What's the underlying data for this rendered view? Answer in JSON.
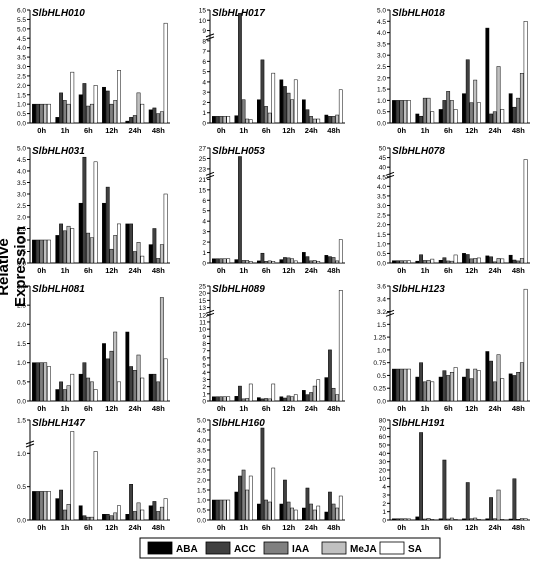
{
  "figure": {
    "ylabel": "Relative Expression",
    "legend": {
      "placement": "bottom-center",
      "entries": [
        {
          "name": "ABA",
          "color": "#000000"
        },
        {
          "name": "ACC",
          "color": "#404040"
        },
        {
          "name": "IAA",
          "color": "#808080"
        },
        {
          "name": "MeJA",
          "color": "#c0c0c0"
        },
        {
          "name": "SA",
          "color": "#ffffff"
        }
      ]
    }
  },
  "chart_data": [
    {
      "type": "bar",
      "title": "SlbHLH010",
      "categories": [
        "0h",
        "1h",
        "6h",
        "12h",
        "24h",
        "48h"
      ],
      "ylim": [
        0,
        6
      ],
      "yticks": [
        "0.0",
        "0.5",
        "1.0",
        "1.5",
        "2.0",
        "2.5",
        "3.0",
        "3.5",
        "4.0",
        "4.5",
        "5.0",
        "5.5",
        "6.0"
      ],
      "series": [
        {
          "name": "ABA",
          "values": [
            1.0,
            0.3,
            1.5,
            1.9,
            0.1,
            0.7
          ]
        },
        {
          "name": "ACC",
          "values": [
            1.0,
            1.6,
            2.1,
            1.7,
            0.3,
            0.8
          ]
        },
        {
          "name": "IAA",
          "values": [
            1.0,
            1.2,
            0.9,
            1.0,
            0.4,
            0.5
          ]
        },
        {
          "name": "MeJA",
          "values": [
            1.0,
            1.0,
            1.0,
            1.2,
            1.6,
            0.6
          ]
        },
        {
          "name": "SA",
          "values": [
            1.0,
            2.7,
            2.0,
            2.8,
            1.0,
            5.3
          ]
        }
      ]
    },
    {
      "type": "bar",
      "title": "SlbHLH017",
      "categories": [
        "0h",
        "1h",
        "6h",
        "12h",
        "24h",
        "48h"
      ],
      "ylim": [
        0,
        17
      ],
      "axis_break": true,
      "yticks": [
        "0",
        "1",
        "2",
        "3",
        "4",
        "5",
        "6",
        "7",
        "8",
        "9",
        "10",
        "15"
      ],
      "series": [
        {
          "name": "ABA",
          "values": [
            1.0,
            1.1,
            3.5,
            6.5,
            3.5,
            1.2
          ]
        },
        {
          "name": "ACC",
          "values": [
            1.0,
            16.5,
            9.5,
            5.5,
            2.0,
            1.0
          ]
        },
        {
          "name": "IAA",
          "values": [
            1.0,
            3.5,
            2.5,
            4.5,
            1.0,
            1.0
          ]
        },
        {
          "name": "MeJA",
          "values": [
            1.0,
            0.6,
            1.5,
            3.5,
            0.6,
            1.2
          ]
        },
        {
          "name": "SA",
          "values": [
            1.0,
            0.5,
            7.5,
            6.5,
            0.6,
            5.0
          ]
        }
      ]
    },
    {
      "type": "bar",
      "title": "SlbHLH018",
      "categories": [
        "0h",
        "1h",
        "6h",
        "12h",
        "24h",
        "48h"
      ],
      "ylim": [
        0,
        5
      ],
      "yticks": [
        "0.0",
        "0.5",
        "1.0",
        "1.5",
        "2.0",
        "2.5",
        "3.0",
        "3.5",
        "4.0",
        "4.5",
        "5.0"
      ],
      "series": [
        {
          "name": "ABA",
          "values": [
            1.0,
            0.4,
            0.6,
            1.3,
            4.2,
            1.3
          ]
        },
        {
          "name": "ACC",
          "values": [
            1.0,
            0.3,
            1.0,
            2.8,
            0.4,
            0.7
          ]
        },
        {
          "name": "IAA",
          "values": [
            1.0,
            1.1,
            1.4,
            0.9,
            0.5,
            1.1
          ]
        },
        {
          "name": "MeJA",
          "values": [
            1.0,
            1.1,
            1.0,
            1.9,
            2.5,
            2.2
          ]
        },
        {
          "name": "SA",
          "values": [
            1.0,
            0.5,
            0.6,
            0.9,
            0.6,
            4.5
          ]
        }
      ]
    },
    {
      "type": "bar",
      "title": "SlbHLH031",
      "categories": [
        "0h",
        "1h",
        "6h",
        "12h",
        "24h",
        "48h"
      ],
      "ylim": [
        0,
        5
      ],
      "yticks": [
        "0.0",
        "0.5",
        "1.0",
        "1.5",
        "2.0",
        "2.5",
        "3.0",
        "3.5",
        "4.0",
        "4.5",
        "5.0"
      ],
      "series": [
        {
          "name": "ABA",
          "values": [
            1.0,
            1.2,
            2.6,
            2.6,
            1.7,
            0.8
          ]
        },
        {
          "name": "ACC",
          "values": [
            1.0,
            1.7,
            4.6,
            3.3,
            1.7,
            1.5
          ]
        },
        {
          "name": "IAA",
          "values": [
            1.0,
            1.4,
            1.3,
            0.6,
            0.5,
            0.2
          ]
        },
        {
          "name": "MeJA",
          "values": [
            1.0,
            1.6,
            1.1,
            1.2,
            0.9,
            0.8
          ]
        },
        {
          "name": "SA",
          "values": [
            1.0,
            1.5,
            4.4,
            1.7,
            0.3,
            3.0
          ]
        }
      ]
    },
    {
      "type": "bar",
      "title": "SlbHLH053",
      "categories": [
        "0h",
        "1h",
        "6h",
        "12h",
        "24h",
        "48h"
      ],
      "ylim": [
        0,
        27
      ],
      "axis_break": true,
      "yticks": [
        "0",
        "1",
        "2",
        "3",
        "4",
        "5",
        "6",
        "15",
        "21",
        "23",
        "25",
        "27"
      ],
      "series": [
        {
          "name": "ABA",
          "values": [
            1.0,
            0.8,
            0.5,
            0.8,
            2.5,
            1.8
          ]
        },
        {
          "name": "ACC",
          "values": [
            1.0,
            25.0,
            2.3,
            1.3,
            1.5,
            1.5
          ]
        },
        {
          "name": "IAA",
          "values": [
            1.0,
            0.6,
            0.4,
            1.2,
            0.5,
            1.3
          ]
        },
        {
          "name": "MeJA",
          "values": [
            1.0,
            0.6,
            0.5,
            1.0,
            0.6,
            0.5
          ]
        },
        {
          "name": "SA",
          "values": [
            1.0,
            0.4,
            0.4,
            0.5,
            0.4,
            5.5
          ]
        }
      ]
    },
    {
      "type": "bar",
      "title": "SlbHLH078",
      "categories": [
        "0h",
        "1h",
        "6h",
        "12h",
        "24h",
        "48h"
      ],
      "ylim": [
        0,
        50
      ],
      "axis_break": true,
      "yticks": [
        "0.0",
        "0.5",
        "1.0",
        "1.5",
        "2.0",
        "2.5",
        "3.0",
        "3.5",
        "4.0",
        "4.5",
        "40",
        "45",
        "50"
      ],
      "series": [
        {
          "name": "ABA",
          "values": [
            1.0,
            0.8,
            1.2,
            4.2,
            3.1,
            3.4
          ]
        },
        {
          "name": "ACC",
          "values": [
            1.0,
            3.6,
            2.3,
            3.7,
            2.7,
            1.3
          ]
        },
        {
          "name": "IAA",
          "values": [
            1.0,
            1.1,
            0.9,
            1.8,
            0.5,
            0.9
          ]
        },
        {
          "name": "MeJA",
          "values": [
            1.0,
            1.1,
            0.8,
            2.0,
            2.0,
            2.0
          ]
        },
        {
          "name": "SA",
          "values": [
            1.0,
            1.7,
            3.5,
            2.2,
            1.8,
            45
          ]
        }
      ]
    },
    {
      "type": "bar",
      "title": "SlbHLH081",
      "categories": [
        "0h",
        "1h",
        "6h",
        "12h",
        "24h",
        "48h"
      ],
      "ylim": [
        0,
        3
      ],
      "yticks": [
        "0.0",
        "0.5",
        "1.0",
        "1.5",
        "2.0",
        "2.5",
        "3.0"
      ],
      "series": [
        {
          "name": "ABA",
          "values": [
            1.0,
            0.3,
            0.7,
            1.5,
            1.8,
            0.7
          ]
        },
        {
          "name": "ACC",
          "values": [
            1.0,
            0.5,
            1.0,
            1.1,
            0.9,
            0.7
          ]
        },
        {
          "name": "IAA",
          "values": [
            1.0,
            0.3,
            0.6,
            1.3,
            0.8,
            0.5
          ]
        },
        {
          "name": "MeJA",
          "values": [
            1.0,
            0.4,
            0.5,
            1.8,
            1.2,
            2.7
          ]
        },
        {
          "name": "SA",
          "values": [
            0.9,
            0.7,
            0.3,
            0.5,
            0.6,
            1.1
          ]
        }
      ]
    },
    {
      "type": "bar",
      "title": "SlbHLH089",
      "categories": [
        "0h",
        "1h",
        "6h",
        "12h",
        "24h",
        "48h"
      ],
      "ylim": [
        0,
        27
      ],
      "axis_break": true,
      "yticks": [
        "0",
        "1",
        "2",
        "3",
        "4",
        "5",
        "6",
        "7",
        "8",
        "9",
        "10",
        "11",
        "12",
        "13",
        "15",
        "20",
        "25"
      ],
      "series": [
        {
          "name": "ABA",
          "values": [
            1.0,
            1.1,
            0.8,
            1.0,
            2.5,
            5.5
          ]
        },
        {
          "name": "ACC",
          "values": [
            1.0,
            3.5,
            0.5,
            0.7,
            1.5,
            12.0
          ]
        },
        {
          "name": "IAA",
          "values": [
            1.0,
            0.5,
            0.6,
            1.2,
            2.0,
            3.0
          ]
        },
        {
          "name": "MeJA",
          "values": [
            1.0,
            0.6,
            0.5,
            1.0,
            3.5,
            1.5
          ]
        },
        {
          "name": "SA",
          "values": [
            1.0,
            4.0,
            4.0,
            1.5,
            5.0,
            26.0
          ]
        }
      ]
    },
    {
      "type": "bar",
      "title": "SlbHLH123",
      "categories": [
        "0h",
        "1h",
        "6h",
        "12h",
        "24h",
        "48h"
      ],
      "ylim": [
        0,
        3.6
      ],
      "axis_break": true,
      "yticks": [
        "0.0",
        "0.25",
        "0.5",
        "0.75",
        "1.0",
        "1.25",
        "1.5",
        "3.2",
        "3.4",
        "3.6"
      ],
      "series": [
        {
          "name": "ABA",
          "values": [
            1.0,
            0.75,
            0.75,
            0.75,
            1.55,
            0.85
          ]
        },
        {
          "name": "ACC",
          "values": [
            1.0,
            1.2,
            0.95,
            1.0,
            1.25,
            0.8
          ]
        },
        {
          "name": "IAA",
          "values": [
            1.0,
            0.6,
            0.8,
            0.7,
            0.6,
            0.9
          ]
        },
        {
          "name": "MeJA",
          "values": [
            1.0,
            0.65,
            0.9,
            1.0,
            1.45,
            1.2
          ]
        },
        {
          "name": "SA",
          "values": [
            1.0,
            0.6,
            1.05,
            0.95,
            0.7,
            3.5
          ]
        }
      ]
    },
    {
      "type": "bar",
      "title": "SlbHLH147",
      "categories": [
        "0h",
        "1h",
        "6h",
        "12h",
        "24h",
        "48h"
      ],
      "ylim": [
        0,
        3.5
      ],
      "axis_break": true,
      "yticks": [
        "0.0",
        "0.5",
        "1.0",
        "1.5"
      ],
      "series": [
        {
          "name": "ABA",
          "values": [
            1.0,
            0.75,
            0.5,
            0.2,
            0.2,
            0.5
          ]
        },
        {
          "name": "ACC",
          "values": [
            1.0,
            1.05,
            0.15,
            0.2,
            1.25,
            0.65
          ]
        },
        {
          "name": "IAA",
          "values": [
            1.0,
            0.35,
            0.1,
            0.15,
            0.3,
            0.3
          ]
        },
        {
          "name": "MeJA",
          "values": [
            1.0,
            0.55,
            0.1,
            0.25,
            0.6,
            0.45
          ]
        },
        {
          "name": "SA",
          "values": [
            1.0,
            3.1,
            2.4,
            0.5,
            0.35,
            0.75
          ]
        }
      ]
    },
    {
      "type": "bar",
      "title": "SlbHLH160",
      "categories": [
        "0h",
        "1h",
        "6h",
        "12h",
        "24h",
        "48h"
      ],
      "ylim": [
        0,
        5
      ],
      "yticks": [
        "0.0",
        "0.5",
        "1.0",
        "1.5",
        "2.0",
        "2.5",
        "3.0",
        "3.5",
        "4.0",
        "4.5",
        "5.0"
      ],
      "series": [
        {
          "name": "ABA",
          "values": [
            1.0,
            1.4,
            0.8,
            0.8,
            0.6,
            0.4
          ]
        },
        {
          "name": "ACC",
          "values": [
            1.0,
            2.2,
            4.6,
            2.0,
            1.6,
            1.4
          ]
        },
        {
          "name": "IAA",
          "values": [
            1.0,
            2.5,
            1.0,
            0.9,
            0.8,
            0.8
          ]
        },
        {
          "name": "MeJA",
          "values": [
            1.0,
            1.5,
            0.9,
            0.6,
            0.5,
            0.6
          ]
        },
        {
          "name": "SA",
          "values": [
            1.0,
            2.2,
            2.6,
            0.5,
            0.7,
            1.2
          ]
        }
      ]
    },
    {
      "type": "bar",
      "title": "SlbHLH191",
      "categories": [
        "0h",
        "1h",
        "6h",
        "12h",
        "24h",
        "48h"
      ],
      "ylim": [
        0,
        80
      ],
      "yticks": [
        "0",
        "1",
        "2",
        "3",
        "4",
        "10",
        "20",
        "30",
        "40",
        "50",
        "60",
        "70",
        "80"
      ],
      "series": [
        {
          "name": "ABA",
          "values": [
            1.0,
            2.5,
            1.0,
            1.0,
            1.0,
            0.8
          ]
        },
        {
          "name": "ACC",
          "values": [
            1.0,
            70,
            48,
            30,
            18,
            33
          ]
        },
        {
          "name": "IAA",
          "values": [
            1.0,
            0.8,
            0.8,
            1.0,
            1.0,
            0.6
          ]
        },
        {
          "name": "MeJA",
          "values": [
            1.0,
            1.3,
            1.6,
            1.6,
            24,
            1.2
          ]
        },
        {
          "name": "SA",
          "values": [
            0.9,
            0.5,
            0.5,
            0.5,
            0.5,
            1.1
          ]
        }
      ]
    }
  ]
}
